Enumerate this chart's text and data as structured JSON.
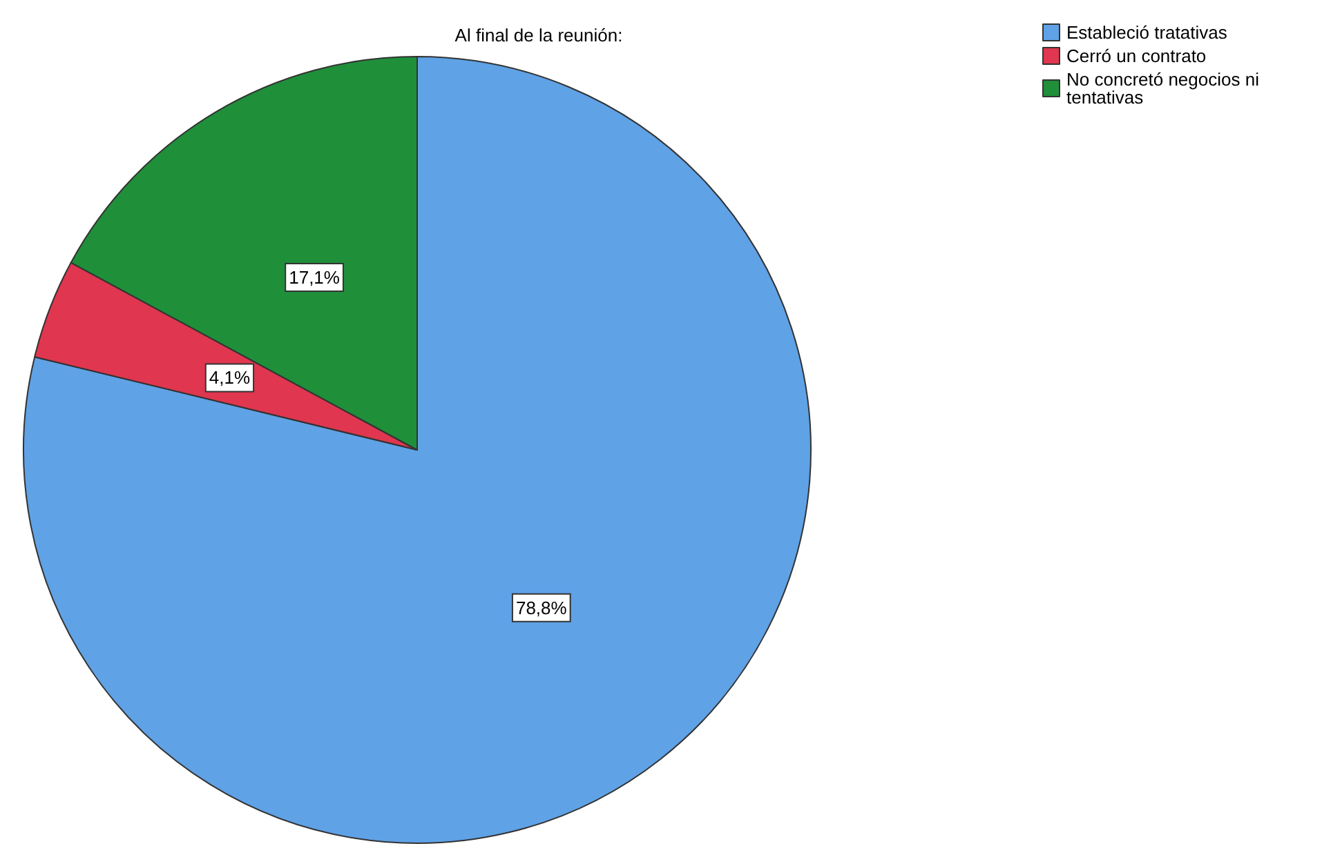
{
  "chart_data": {
    "type": "pie",
    "title": "Al final de la reunión:",
    "categories": [
      "Estableció tratativas",
      "Cerró un contrato",
      "No concretó negocios ni tentativas"
    ],
    "values": [
      78.8,
      4.1,
      17.1
    ],
    "colors": [
      "#5fa2e6",
      "#e0364f",
      "#1f8f3a"
    ],
    "value_labels": [
      "78,8%",
      "4,1%",
      "17,1%"
    ],
    "legend": "top right"
  }
}
